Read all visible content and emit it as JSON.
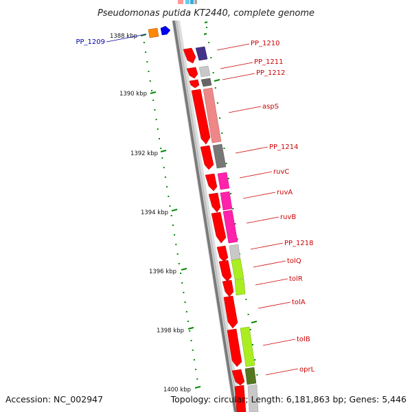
{
  "header": {
    "title": "Pseudomonas putida KT2440, complete genome"
  },
  "footer": {
    "accession": "Accession: NC_002947",
    "summary": "Topology: circular; Length: 6,181,863 bp; Genes: 5,446"
  },
  "colors": {
    "backbone": "#7a7a7a",
    "cds_arrow": "#ff0000",
    "tick": "#008800",
    "label_red": "#cc0000",
    "label_blue": "#0000aa"
  },
  "ticks": [
    {
      "label": "1388 kbp"
    },
    {
      "label": "1390 kbp"
    },
    {
      "label": "1392 kbp"
    },
    {
      "label": "1394 kbp"
    },
    {
      "label": "1396 kbp"
    },
    {
      "label": "1398 kbp"
    },
    {
      "label": "1400 kbp"
    }
  ],
  "genes": [
    {
      "name": "PP_1209",
      "color": "#0000aa"
    },
    {
      "name": "PP_1210",
      "color": "#cc0000"
    },
    {
      "name": "PP_1211",
      "color": "#cc0000"
    },
    {
      "name": "PP_1212",
      "color": "#cc0000"
    },
    {
      "name": "aspS",
      "color": "#cc0000"
    },
    {
      "name": "PP_1214",
      "color": "#cc0000"
    },
    {
      "name": "ruvC",
      "color": "#cc0000"
    },
    {
      "name": "ruvA",
      "color": "#cc0000"
    },
    {
      "name": "ruvB",
      "color": "#cc0000"
    },
    {
      "name": "PP_1218",
      "color": "#cc0000"
    },
    {
      "name": "tolQ",
      "color": "#cc0000"
    },
    {
      "name": "tolR",
      "color": "#cc0000"
    },
    {
      "name": "tolA",
      "color": "#cc0000"
    },
    {
      "name": "tolB",
      "color": "#cc0000"
    },
    {
      "name": "oprL",
      "color": "#cc0000"
    }
  ],
  "feature_colors": {
    "PP_1210": "#443388",
    "PP_1211": "#c8c8c8",
    "PP_1212": "#666666",
    "aspS": "#ee8888",
    "PP_1214": "#777777",
    "ruvC": "#ff22aa",
    "ruvA": "#ff22aa",
    "ruvB": "#ff22aa",
    "PP_1218": "#c8c8c8",
    "tolQ": "#aaee22",
    "tolR": "#aaee22",
    "tolB": "#aaee22",
    "oprL": "#557722"
  }
}
